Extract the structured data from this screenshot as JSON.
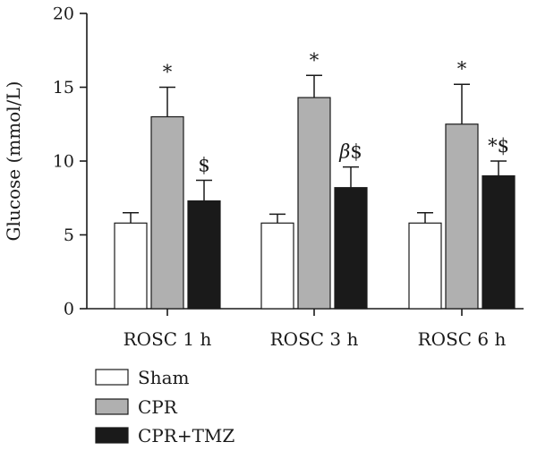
{
  "chart_data": {
    "type": "bar",
    "ylabel": "Glucose (mmol/L)",
    "ylim": [
      0,
      20
    ],
    "yticks": [
      "0",
      "5",
      "10",
      "15",
      "20"
    ],
    "categories": [
      "ROSC 1 h",
      "ROSC 3 h",
      "ROSC 6 h"
    ],
    "series": [
      {
        "name": "Sham",
        "color": "#ffffff",
        "values": [
          5.8,
          5.8,
          5.8
        ],
        "errors": [
          0.7,
          0.6,
          0.7
        ]
      },
      {
        "name": "CPR",
        "color": "#b0b0b0",
        "values": [
          13.0,
          14.3,
          12.5
        ],
        "errors": [
          2.0,
          1.5,
          2.7
        ]
      },
      {
        "name": "CPR+TMZ",
        "color": "#1a1a1a",
        "values": [
          7.3,
          8.2,
          9.0
        ],
        "errors": [
          1.4,
          1.4,
          1.0
        ]
      }
    ],
    "annotations": [
      {
        "category": 0,
        "series": 1,
        "text": "*"
      },
      {
        "category": 0,
        "series": 2,
        "text": "$"
      },
      {
        "category": 1,
        "series": 1,
        "text": "*"
      },
      {
        "category": 1,
        "series": 2,
        "text": "β$"
      },
      {
        "category": 2,
        "series": 1,
        "text": "*"
      },
      {
        "category": 2,
        "series": 2,
        "text": "*$"
      }
    ],
    "grid": false,
    "legend_position": "bottom-left"
  }
}
